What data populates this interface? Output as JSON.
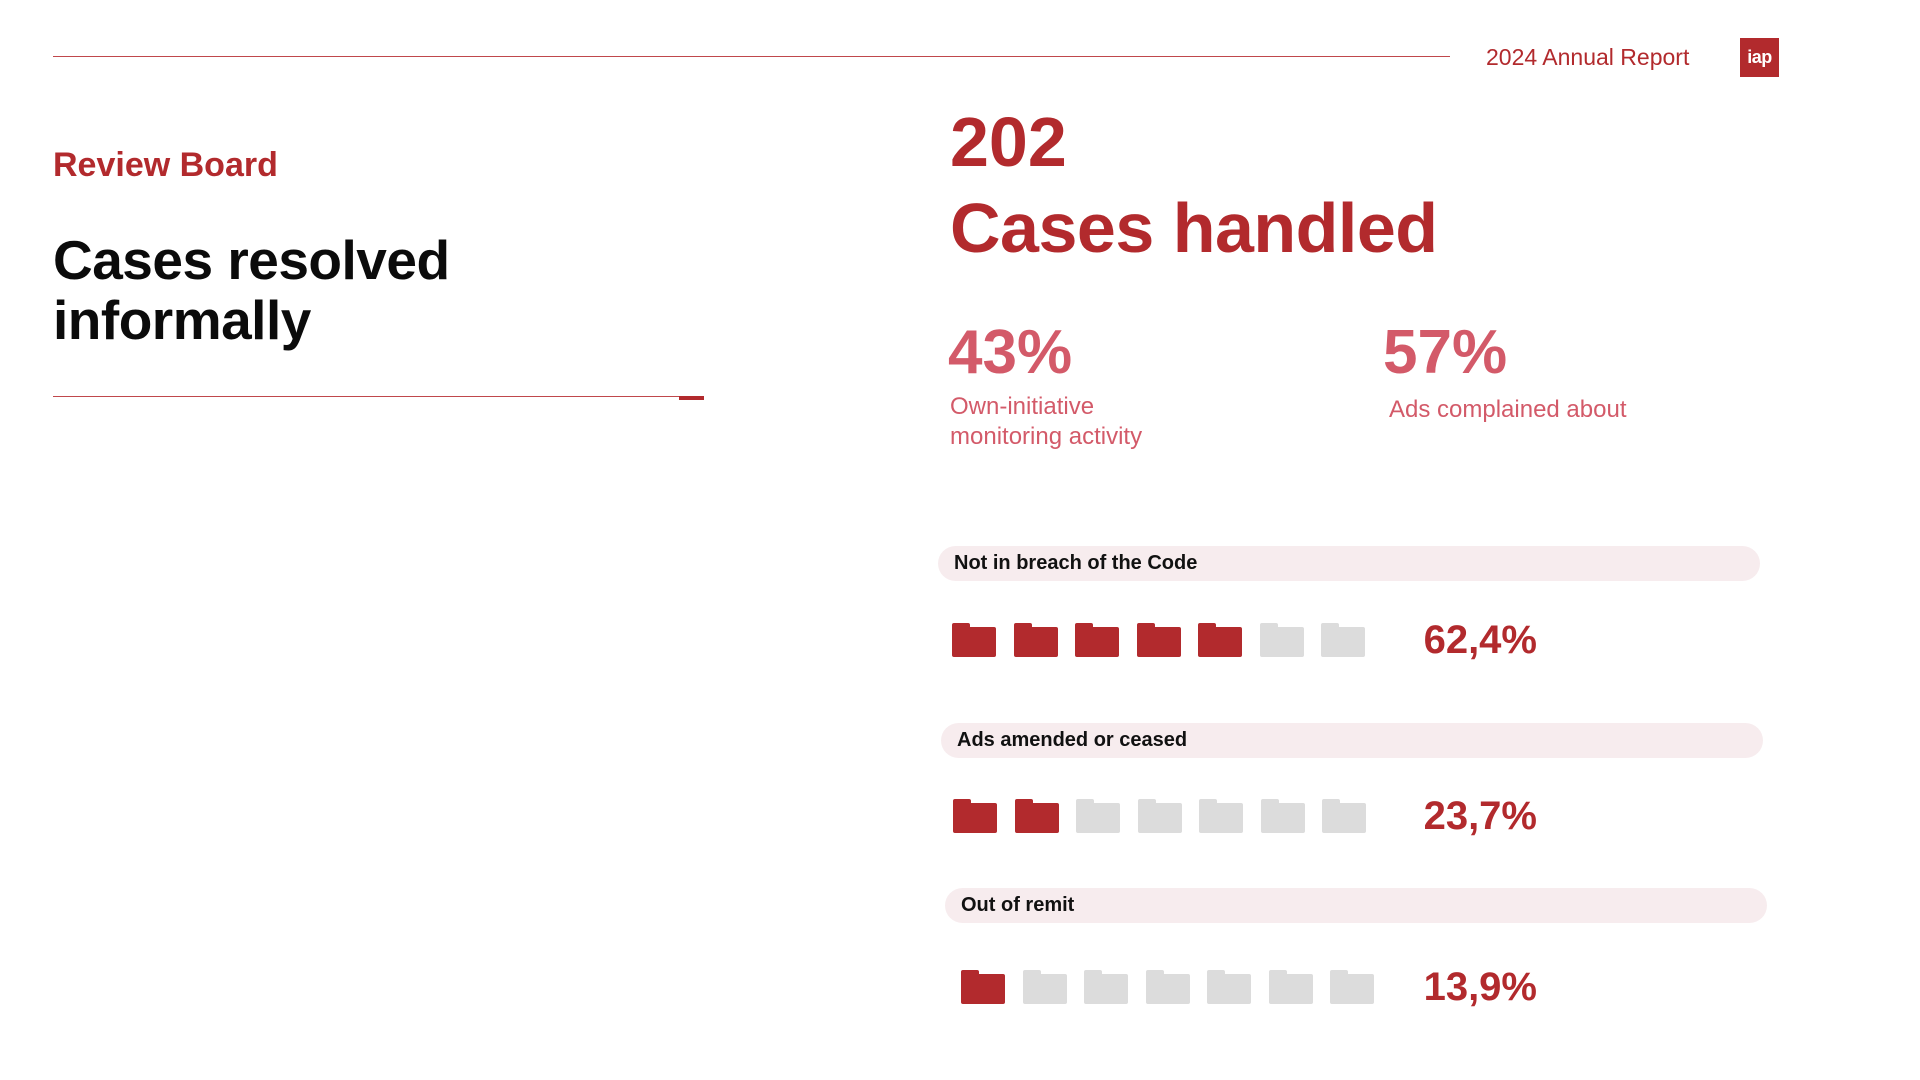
{
  "header": {
    "report_title": "2024 Annual Report",
    "logo_text": "iap"
  },
  "left": {
    "section_label": "Review Board",
    "heading": "Cases resolved informally"
  },
  "totals": {
    "value": "202",
    "label": "Cases handled"
  },
  "split": [
    {
      "percent_label": "43%",
      "description": "Own-initiative monitoring activity"
    },
    {
      "percent_label": "57%",
      "description": "Ads complained about"
    }
  ],
  "colors": {
    "accent": "#b22a2d",
    "soft_accent": "#d35a69",
    "empty_folder": "#dcdcdc",
    "row_band": "#f7ecee"
  },
  "chart_data": {
    "type": "bar",
    "icon": "folder-icon",
    "icons_per_row": 7,
    "categories": [
      "Not in breach of the Code",
      "Ads amended or ceased",
      "Out of remit"
    ],
    "values": [
      62.4,
      23.7,
      13.9
    ],
    "value_labels": [
      "62,4%",
      "23,7%",
      "13,9%"
    ],
    "filled_icons": [
      5,
      2,
      1
    ],
    "ylim": [
      0,
      100
    ]
  }
}
